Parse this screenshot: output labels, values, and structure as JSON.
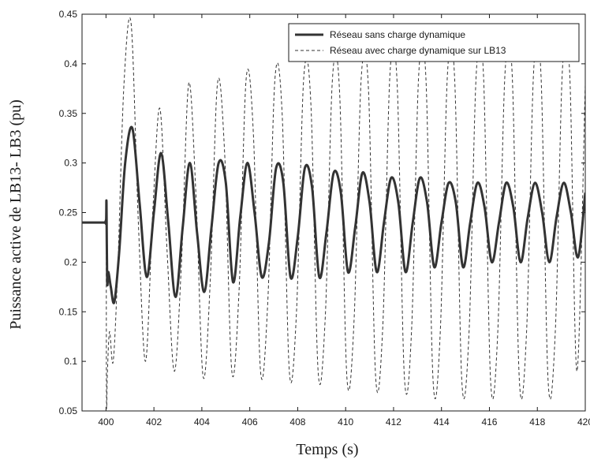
{
  "chart_data": {
    "type": "line",
    "title": "",
    "xlabel": "Temps (s)",
    "ylabel": "Puissance active de LB13- LB3 (pu)",
    "xlim": [
      399,
      420
    ],
    "ylim": [
      0.05,
      0.45
    ],
    "xticks": [
      400,
      402,
      404,
      406,
      408,
      410,
      412,
      414,
      416,
      418,
      420
    ],
    "yticks": [
      0.05,
      0.1,
      0.15,
      0.2,
      0.25,
      0.3,
      0.35,
      0.4,
      0.45
    ],
    "xtick_labels": [
      "400",
      "402",
      "404",
      "406",
      "408",
      "410",
      "412",
      "414",
      "416",
      "418",
      "420"
    ],
    "ytick_labels": [
      "0.05",
      "0.1",
      "0.15",
      "0.2",
      "0.25",
      "0.3",
      "0.35",
      "0.4",
      "0.45"
    ],
    "grid": false,
    "legend_position": "top-right",
    "series": [
      {
        "name": "Réseau sans charge dynamique",
        "style": "solid",
        "color": "#333333",
        "x": [
          399.0,
          399.9,
          400.0,
          400.02,
          400.05,
          400.1,
          400.2,
          400.35,
          400.55,
          400.8,
          401.1,
          401.4,
          401.7,
          402.0,
          402.3,
          402.6,
          402.9,
          403.2,
          403.5,
          403.8,
          404.1,
          404.4,
          404.7,
          405.0,
          405.3,
          405.6,
          405.9,
          406.2,
          406.5,
          406.8,
          407.1,
          407.4,
          407.7,
          408.0,
          408.3,
          408.6,
          408.9,
          409.2,
          409.5,
          409.8,
          410.1,
          410.4,
          410.7,
          411.0,
          411.3,
          411.6,
          411.9,
          412.2,
          412.5,
          412.8,
          413.1,
          413.4,
          413.7,
          414.0,
          414.3,
          414.6,
          414.9,
          415.2,
          415.5,
          415.8,
          416.1,
          416.4,
          416.7,
          417.0,
          417.3,
          417.6,
          417.9,
          418.2,
          418.5,
          418.8,
          419.1,
          419.4,
          419.7,
          420.0
        ],
        "y": [
          0.24,
          0.24,
          0.24,
          0.26,
          0.18,
          0.19,
          0.175,
          0.16,
          0.21,
          0.3,
          0.335,
          0.26,
          0.185,
          0.25,
          0.31,
          0.24,
          0.165,
          0.235,
          0.3,
          0.23,
          0.17,
          0.235,
          0.3,
          0.28,
          0.18,
          0.245,
          0.3,
          0.25,
          0.185,
          0.22,
          0.295,
          0.28,
          0.185,
          0.225,
          0.295,
          0.275,
          0.185,
          0.23,
          0.29,
          0.27,
          0.19,
          0.235,
          0.29,
          0.26,
          0.19,
          0.24,
          0.285,
          0.26,
          0.19,
          0.24,
          0.285,
          0.26,
          0.195,
          0.24,
          0.28,
          0.26,
          0.195,
          0.24,
          0.28,
          0.255,
          0.2,
          0.24,
          0.28,
          0.255,
          0.2,
          0.245,
          0.28,
          0.25,
          0.2,
          0.245,
          0.28,
          0.25,
          0.205,
          0.27
        ]
      },
      {
        "name": "Réseau avec charge dynamique sur LB13",
        "style": "dashed",
        "color": "#333333",
        "x": [
          399.0,
          399.9,
          400.0,
          400.02,
          400.06,
          400.15,
          400.3,
          400.5,
          400.75,
          401.05,
          401.35,
          401.65,
          401.95,
          402.25,
          402.55,
          402.85,
          403.15,
          403.45,
          403.75,
          404.05,
          404.35,
          404.65,
          404.95,
          405.25,
          405.55,
          405.85,
          406.15,
          406.45,
          406.75,
          407.05,
          407.35,
          407.65,
          407.95,
          408.25,
          408.55,
          408.85,
          409.15,
          409.45,
          409.75,
          410.05,
          410.35,
          410.65,
          410.95,
          411.25,
          411.55,
          411.85,
          412.15,
          412.45,
          412.75,
          413.05,
          413.35,
          413.65,
          413.95,
          414.25,
          414.55,
          414.85,
          415.15,
          415.45,
          415.75,
          416.05,
          416.35,
          416.65,
          416.95,
          417.25,
          417.55,
          417.85,
          418.15,
          418.45,
          418.75,
          419.05,
          419.35,
          419.65,
          420.0
        ],
        "y": [
          0.24,
          0.24,
          0.24,
          0.06,
          0.09,
          0.13,
          0.1,
          0.2,
          0.38,
          0.44,
          0.24,
          0.1,
          0.25,
          0.355,
          0.21,
          0.09,
          0.2,
          0.38,
          0.27,
          0.085,
          0.18,
          0.38,
          0.31,
          0.09,
          0.17,
          0.385,
          0.33,
          0.09,
          0.16,
          0.385,
          0.35,
          0.09,
          0.15,
          0.385,
          0.36,
          0.09,
          0.145,
          0.385,
          0.37,
          0.085,
          0.14,
          0.385,
          0.375,
          0.085,
          0.135,
          0.39,
          0.38,
          0.085,
          0.13,
          0.39,
          0.385,
          0.08,
          0.13,
          0.39,
          0.385,
          0.08,
          0.13,
          0.39,
          0.39,
          0.08,
          0.13,
          0.39,
          0.39,
          0.08,
          0.13,
          0.395,
          0.39,
          0.08,
          0.13,
          0.395,
          0.39,
          0.09,
          0.38
        ]
      }
    ]
  }
}
